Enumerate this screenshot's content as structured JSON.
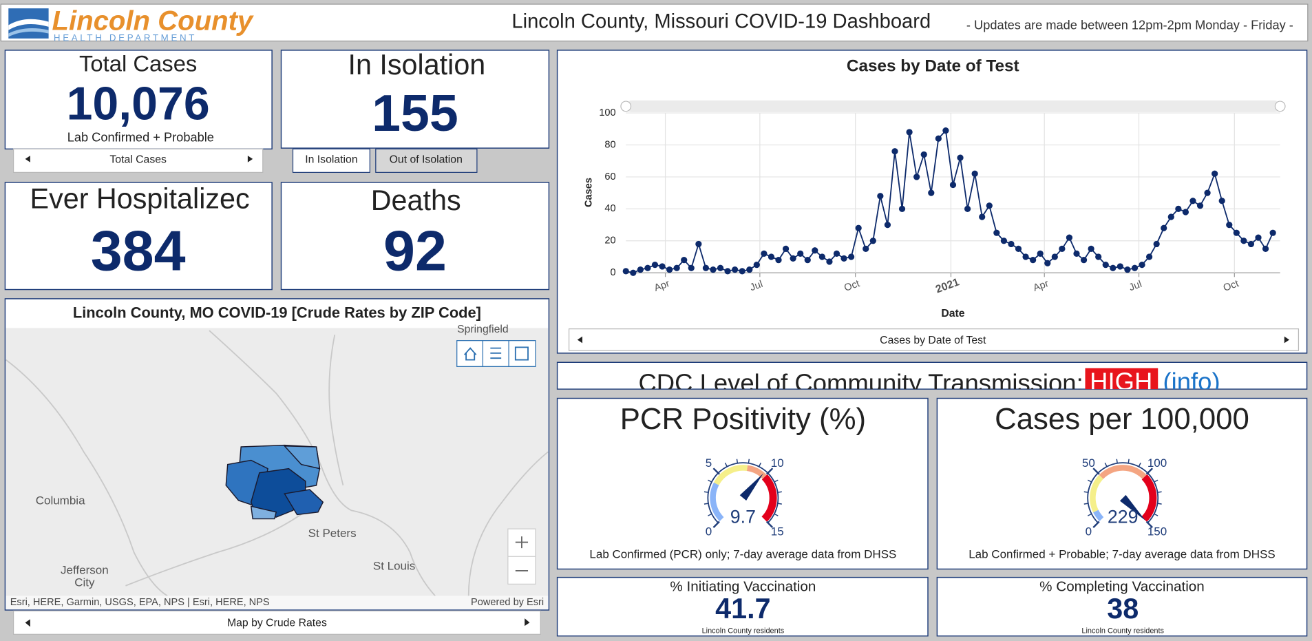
{
  "header": {
    "logo_title": "Lincoln County",
    "logo_subtitle": "HEALTH DEPARTMENT",
    "title": "Lincoln County, Missouri COVID-19 Dashboard",
    "notice": "-  Updates are made between 12pm-2pm Monday - Friday  -"
  },
  "total_cases": {
    "title": "Total Cases",
    "value": "10,076",
    "subtitle": "Lab Confirmed + Probable",
    "tab": "Total Cases"
  },
  "isolation": {
    "title": "In Isolation",
    "value": "155",
    "tabs": [
      "In Isolation",
      "Out of Isolation"
    ]
  },
  "hospitalized": {
    "title": "Ever Hospitalizec",
    "value": "384"
  },
  "deaths": {
    "title": "Deaths",
    "value": "92"
  },
  "map": {
    "title": "Lincoln County, MO COVID-19 [Crude Rates by ZIP Code]",
    "labels": [
      "Springfield",
      "Columbia",
      "St Peters",
      "St Louis",
      "Jefferson",
      "City"
    ],
    "attribution_left": "Esri, HERE, Garmin, USGS, EPA, NPS | Esri, HERE, NPS",
    "attribution_right": "Powered by Esri",
    "tab": "Map by Crude Rates"
  },
  "chart_data": {
    "type": "line",
    "title": "Cases by Date of Test",
    "x_label": "Date",
    "y_label": "Cases",
    "tab": "Cases by Date of Test",
    "color": "#0d2a6b",
    "grid": true,
    "xlim": [
      0,
      630
    ],
    "xticks": [
      {
        "value": 38,
        "label": "Apr"
      },
      {
        "value": 129,
        "label": "Jul"
      },
      {
        "value": 221,
        "label": "Oct"
      },
      {
        "value": 313,
        "label": "2021"
      },
      {
        "value": 403,
        "label": "Apr"
      },
      {
        "value": 494,
        "label": "Jul"
      },
      {
        "value": 586,
        "label": "Oct"
      }
    ],
    "ylim": [
      0,
      100
    ],
    "yticks": [
      0,
      20,
      40,
      60,
      80,
      100
    ],
    "x": [
      0,
      7,
      14,
      21,
      28,
      35,
      42,
      49,
      56,
      63,
      70,
      77,
      84,
      91,
      98,
      105,
      112,
      119,
      126,
      133,
      140,
      147,
      154,
      161,
      168,
      175,
      182,
      189,
      196,
      203,
      210,
      217,
      224,
      231,
      238,
      245,
      252,
      259,
      266,
      273,
      280,
      287,
      294,
      301,
      308,
      315,
      322,
      329,
      336,
      343,
      350,
      357,
      364,
      371,
      378,
      385,
      392,
      399,
      406,
      413,
      420,
      427,
      434,
      441,
      448,
      455,
      462,
      469,
      476,
      483,
      490,
      497,
      504,
      511,
      518,
      525,
      532,
      539,
      546,
      553,
      560,
      567,
      574,
      581,
      588,
      595,
      602,
      609,
      616,
      623
    ],
    "values": [
      1,
      0,
      2,
      3,
      5,
      4,
      2,
      3,
      8,
      3,
      18,
      3,
      2,
      3,
      1,
      2,
      1,
      2,
      5,
      12,
      10,
      8,
      15,
      9,
      12,
      8,
      14,
      10,
      7,
      12,
      9,
      10,
      28,
      15,
      20,
      48,
      30,
      76,
      40,
      88,
      60,
      74,
      50,
      84,
      89,
      55,
      72,
      40,
      62,
      35,
      42,
      25,
      20,
      18,
      15,
      10,
      8,
      12,
      6,
      10,
      15,
      22,
      12,
      8,
      15,
      10,
      5,
      3,
      4,
      2,
      3,
      5,
      10,
      18,
      28,
      35,
      40,
      38,
      45,
      42,
      50,
      62,
      45,
      30,
      25,
      20,
      18,
      22,
      15,
      25
    ]
  },
  "cdc": {
    "label": "CDC Level of Community Transmission:",
    "level": "HIGH",
    "link": "(info)"
  },
  "pcr_gauge": {
    "title": "PCR Positivity (%)",
    "min": 0,
    "max": 15,
    "ticks": [
      0,
      5,
      10,
      15
    ],
    "value": 9.7,
    "note": "Lab Confirmed (PCR) only; 7-day average data from DHSS"
  },
  "rate_gauge": {
    "title": "Cases per 100,000",
    "min": 0,
    "max": 150,
    "ticks": [
      0,
      50,
      100,
      150
    ],
    "value": 229,
    "note": "Lab Confirmed + Probable; 7-day average data from DHSS"
  },
  "vacc_initiating": {
    "title": "% Initiating Vaccination",
    "value": "41.7",
    "note": "Lincoln County residents"
  },
  "vacc_completing": {
    "title": "% Completing Vaccination",
    "value": "38",
    "note": "Lincoln County residents"
  }
}
